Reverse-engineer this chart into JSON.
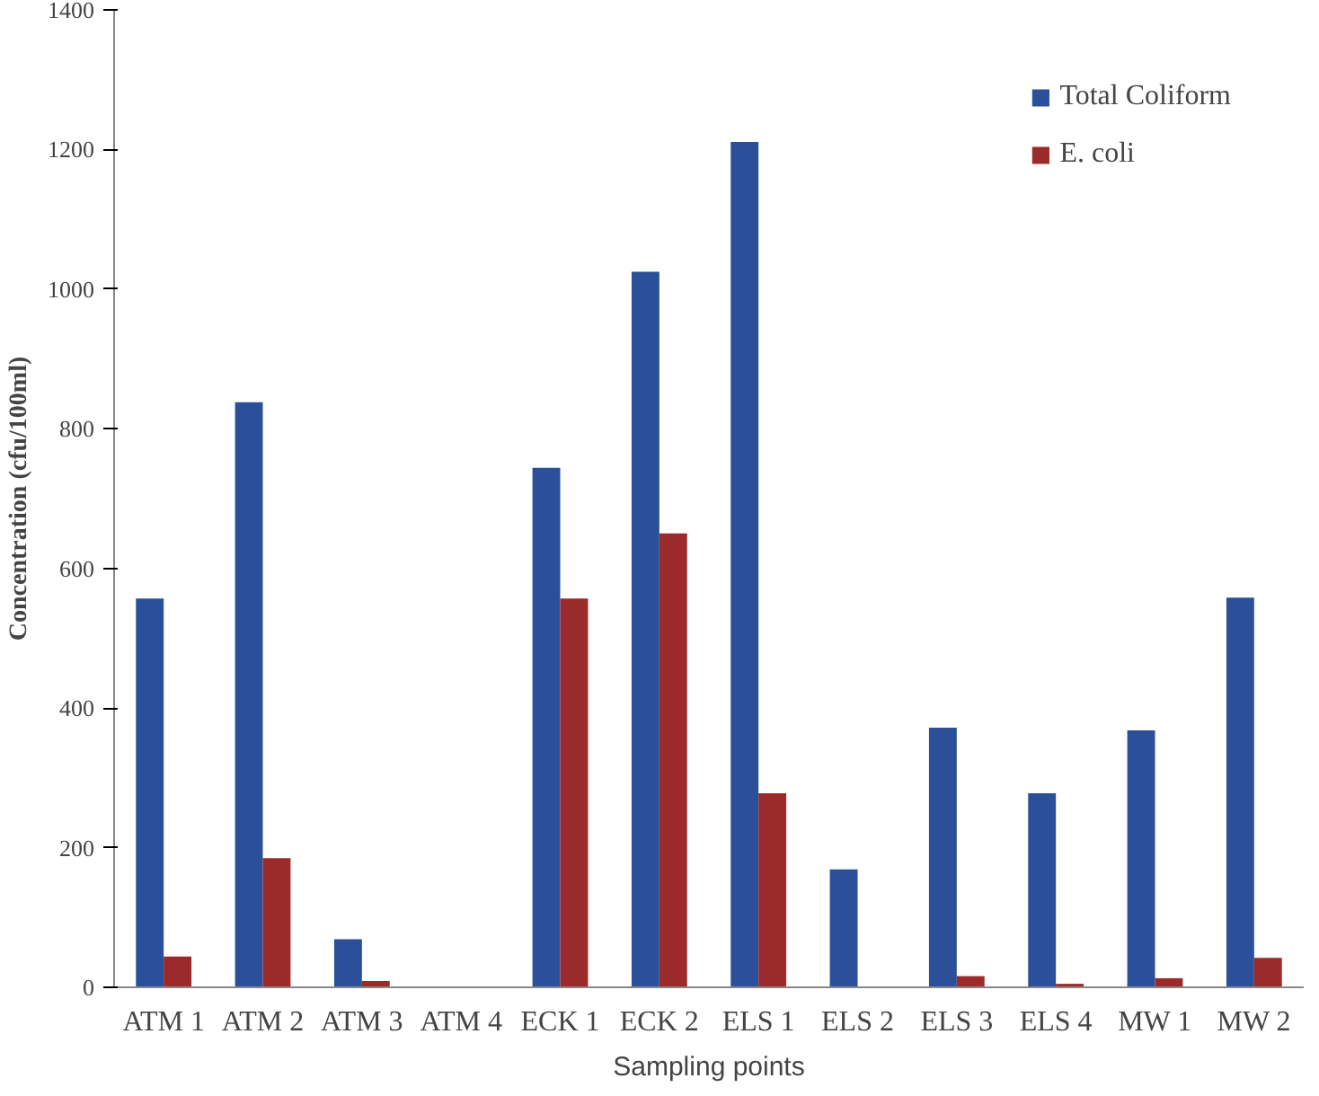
{
  "chart_data": {
    "type": "bar",
    "xlabel": "Sampling points",
    "ylabel": "Concentration (cfu/100ml)",
    "categories": [
      "ATM 1",
      "ATM 2",
      "ATM 3",
      "ATM 4",
      "ECK 1",
      "ECK 2",
      "ELS 1",
      "ELS 2",
      "ELS 3",
      "ELS 4",
      "MW 1",
      "MW 2"
    ],
    "series": [
      {
        "name": "Total Coliform",
        "color": "#2b5099",
        "values": [
          557,
          838,
          69,
          0,
          744,
          1025,
          1211,
          169,
          372,
          278,
          368,
          558
        ]
      },
      {
        "name": "E. coli",
        "color": "#9b2a2a",
        "values": [
          44,
          185,
          9,
          0,
          557,
          650,
          278,
          0,
          16,
          5,
          13,
          42
        ]
      }
    ],
    "ylim": [
      0,
      1400
    ],
    "yticks": [
      0,
      200,
      400,
      600,
      800,
      1000,
      1200,
      1400
    ],
    "grid": false,
    "legend": "top right"
  }
}
